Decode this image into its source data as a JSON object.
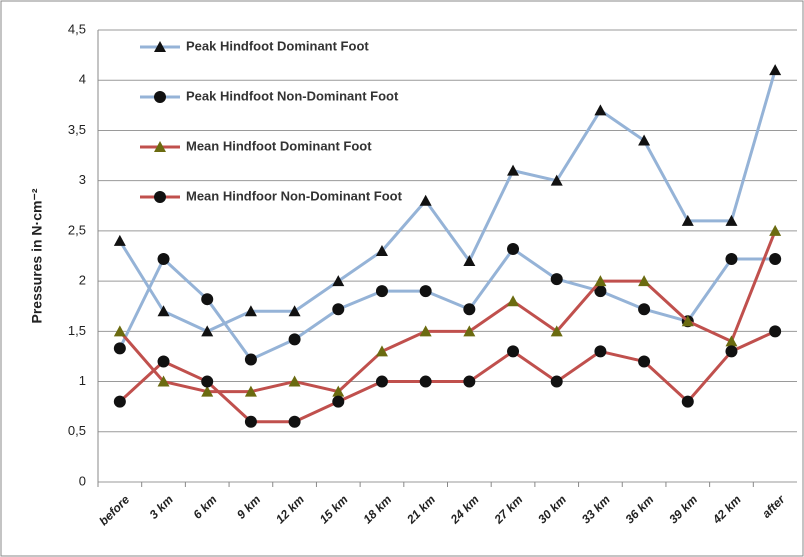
{
  "chart_data": {
    "type": "line",
    "y_label": "Pressures in N·cm⁻²",
    "categories": [
      "before",
      "3 km",
      "6 km",
      "9 km",
      "12 km",
      "15 km",
      "18 km",
      "21 km",
      "24 km",
      "27 km",
      "30 km",
      "33 km",
      "36 km",
      "39 km",
      "42 km",
      "after"
    ],
    "series": [
      {
        "name": "Peak Hindfoot Dominant Foot",
        "color": "#95b3d7",
        "marker": "triangle",
        "marker_color": "#111111",
        "values": [
          2.4,
          1.7,
          1.5,
          1.7,
          1.7,
          2.0,
          2.3,
          2.8,
          2.2,
          3.1,
          3.0,
          3.7,
          3.4,
          2.6,
          2.6,
          4.1
        ]
      },
      {
        "name": "Peak Hindfoot Non-Dominant Foot",
        "color": "#95b3d7",
        "marker": "circle",
        "marker_color": "#111111",
        "values": [
          1.33,
          2.22,
          1.82,
          1.22,
          1.42,
          1.72,
          1.9,
          1.9,
          1.72,
          2.32,
          2.02,
          1.9,
          1.72,
          1.6,
          2.22,
          2.22
        ]
      },
      {
        "name": "Mean Hindfoot Dominant Foot",
        "color": "#c0504d",
        "marker": "triangle",
        "marker_color": "#6b6b10",
        "values": [
          1.5,
          1.0,
          0.9,
          0.9,
          1.0,
          0.9,
          1.3,
          1.5,
          1.5,
          1.8,
          1.5,
          2.0,
          2.0,
          1.6,
          1.4,
          2.5
        ]
      },
      {
        "name": "Mean Hindfoor Non-Dominant Foot",
        "color": "#c0504d",
        "marker": "circle",
        "marker_color": "#111111",
        "values": [
          0.8,
          1.2,
          1.0,
          0.6,
          0.6,
          0.8,
          1.0,
          1.0,
          1.0,
          1.3,
          1.0,
          1.3,
          1.2,
          0.8,
          1.3,
          1.5
        ]
      }
    ],
    "ylim": [
      0,
      4.5
    ],
    "yticks": [
      0,
      {
        "value": 0.5,
        "label": "0,5"
      },
      1,
      {
        "value": 1.5,
        "label": "1,5"
      },
      2,
      {
        "value": 2.5,
        "label": "2,5"
      },
      3,
      {
        "value": 3.5,
        "label": "3,5"
      },
      4,
      {
        "value": 4.5,
        "label": "4,5"
      }
    ],
    "grid": true,
    "legend": "upper left"
  }
}
